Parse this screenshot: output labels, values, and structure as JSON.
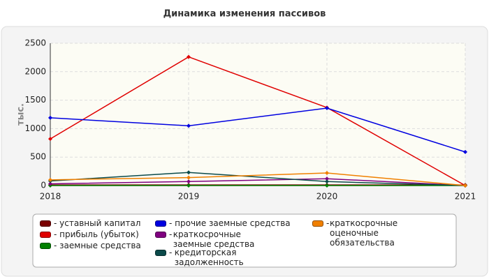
{
  "chart_data": {
    "type": "line",
    "title": "Динамика изменения пассивов",
    "y_label": "тыс.",
    "categories": [
      "2018",
      "2019",
      "2020",
      "2021"
    ],
    "series": [
      {
        "name": "уставный капитал",
        "color": "#7a0000",
        "values": [
          10,
          10,
          10,
          10
        ]
      },
      {
        "name": "прибыль (убыток)",
        "color": "#e00000",
        "values": [
          820,
          2260,
          1370,
          0
        ]
      },
      {
        "name": "заемные средства",
        "color": "#008000",
        "values": [
          0,
          0,
          0,
          0
        ]
      },
      {
        "name": "прочие заемные средства",
        "color": "#0000e0",
        "values": [
          1190,
          1050,
          1360,
          590
        ]
      },
      {
        "name": "краткосрочные заемные средства",
        "color": "#800080",
        "values": [
          30,
          70,
          120,
          0
        ]
      },
      {
        "name": "кредиторская задолженность",
        "color": "#0b4a4a",
        "values": [
          80,
          230,
          70,
          0
        ]
      },
      {
        "name": "краткосрочные оценочные обязательства",
        "color": "#f08000",
        "values": [
          100,
          140,
          220,
          0
        ]
      }
    ],
    "ylim": [
      0,
      2500
    ],
    "yticks": [
      0,
      500,
      1000,
      1500,
      2000,
      2500
    ],
    "grid": true
  }
}
